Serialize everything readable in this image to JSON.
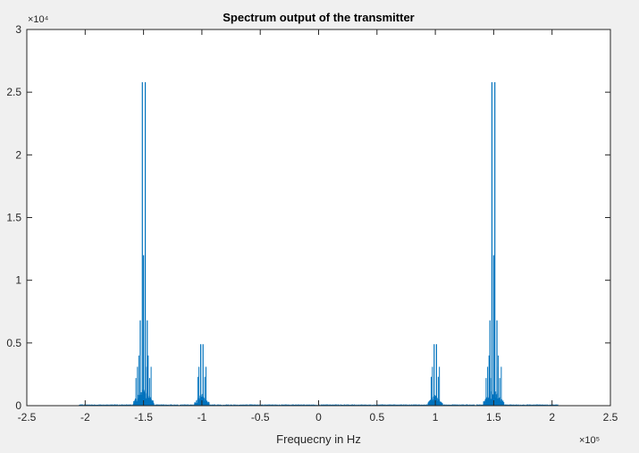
{
  "chart_data": {
    "type": "line",
    "title": "Spectrum output of the transmitter",
    "xlabel": "Frequecny in Hz",
    "ylabel": "",
    "x_exponent": "×10⁵",
    "y_exponent": "×10⁴",
    "xlim": [
      -250000,
      250000
    ],
    "ylim": [
      0,
      30000
    ],
    "xticks": [
      -250000,
      -200000,
      -150000,
      -100000,
      -50000,
      0,
      50000,
      100000,
      150000,
      200000,
      250000
    ],
    "xtick_labels": [
      "-2.5",
      "-2",
      "-1.5",
      "-1",
      "-0.5",
      "0",
      "0.5",
      "1",
      "1.5",
      "2",
      "2.5"
    ],
    "yticks": [
      0,
      5000,
      10000,
      15000,
      20000,
      25000,
      30000
    ],
    "ytick_labels": [
      "0",
      "0.5",
      "1",
      "1.5",
      "2",
      "2.5",
      "3"
    ],
    "grid": false,
    "line_color": "#0072bd",
    "peaks": [
      {
        "x": -151000,
        "y": 25800
      },
      {
        "x": -148500,
        "y": 25800
      },
      {
        "x": -152800,
        "y": 6800
      },
      {
        "x": -146800,
        "y": 6800
      },
      {
        "x": -150000,
        "y": 12000
      },
      {
        "x": -101000,
        "y": 4900
      },
      {
        "x": -99000,
        "y": 4900
      },
      {
        "x": 99000,
        "y": 4900
      },
      {
        "x": 101000,
        "y": 4900
      },
      {
        "x": 148500,
        "y": 25800
      },
      {
        "x": 151000,
        "y": 25800
      },
      {
        "x": 146800,
        "y": 6800
      },
      {
        "x": 152800,
        "y": 6800
      },
      {
        "x": 150000,
        "y": 12000
      }
    ]
  }
}
